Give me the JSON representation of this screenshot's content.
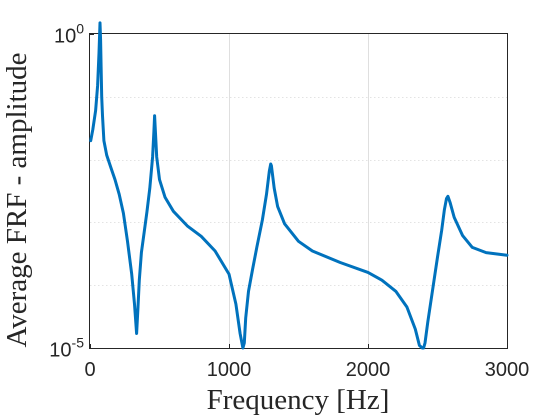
{
  "chart_data": {
    "type": "line",
    "title": "",
    "xlabel": "Frequency [Hz]",
    "ylabel": "Average FRF - amplitude",
    "xlim": [
      0,
      3000
    ],
    "ylim": [
      1e-05,
      1
    ],
    "yscale": "log",
    "grid": true,
    "legend": "none",
    "x_ticks": [
      0,
      1000,
      2000,
      3000
    ],
    "x_tick_labels": [
      "0",
      "1000",
      "2000",
      "3000"
    ],
    "y_ticks": [
      1e-05,
      1
    ],
    "y_tick_labels": [
      {
        "base": "10",
        "exp": "-5"
      },
      {
        "base": "10",
        "exp": "0"
      }
    ],
    "y_minor_grid": [
      0.0001,
      0.001,
      0.01,
      0.1
    ],
    "colors": {
      "line": "#0072bd",
      "axis": "#262626",
      "grid": "#dfdfdf"
    },
    "series": [
      {
        "color": "#0072bd",
        "x": [
          5,
          20,
          40,
          55,
          65,
          72,
          76,
          80,
          84,
          90,
          100,
          120,
          150,
          180,
          210,
          240,
          270,
          300,
          320,
          335,
          345,
          355,
          370,
          390,
          410,
          430,
          450,
          460,
          465,
          470,
          480,
          500,
          540,
          600,
          700,
          800,
          900,
          1000,
          1050,
          1080,
          1100,
          1110,
          1120,
          1140,
          1170,
          1200,
          1240,
          1270,
          1290,
          1300,
          1305,
          1310,
          1325,
          1350,
          1400,
          1500,
          1600,
          1800,
          2000,
          2100,
          2200,
          2280,
          2340,
          2370,
          2390,
          2400,
          2410,
          2430,
          2470,
          2500,
          2530,
          2550,
          2565,
          2575,
          2590,
          2620,
          2680,
          2750,
          2850,
          3000
        ],
        "y": [
          0.02,
          0.03,
          0.06,
          0.15,
          0.5,
          1.5,
          0.8,
          0.3,
          0.1,
          0.05,
          0.02,
          0.0118,
          0.0075,
          0.0048,
          0.0028,
          0.0014,
          0.0005,
          0.00015,
          5e-05,
          1.7e-05,
          4.5e-05,
          0.00012,
          0.00033,
          0.0007,
          0.0015,
          0.0035,
          0.011,
          0.028,
          0.05,
          0.03,
          0.011,
          0.0048,
          0.0025,
          0.0015,
          0.00088,
          0.0006,
          0.00035,
          0.00015,
          5e-05,
          1.7e-05,
          6e-06,
          1.2e-05,
          3e-05,
          8e-05,
          0.00018,
          0.0004,
          0.0011,
          0.0028,
          0.0065,
          0.0085,
          0.008,
          0.0065,
          0.0035,
          0.0018,
          0.00095,
          0.0005,
          0.00035,
          0.00023,
          0.00016,
          0.00012,
          8e-05,
          4.5e-05,
          2e-05,
          1.1e-05,
          7.5e-06,
          8.5e-06,
          1.2e-05,
          2.6e-05,
          0.0001,
          0.00028,
          0.00075,
          0.0016,
          0.0024,
          0.0026,
          0.0021,
          0.0012,
          0.00062,
          0.0004,
          0.00033,
          0.0003
        ]
      }
    ]
  }
}
